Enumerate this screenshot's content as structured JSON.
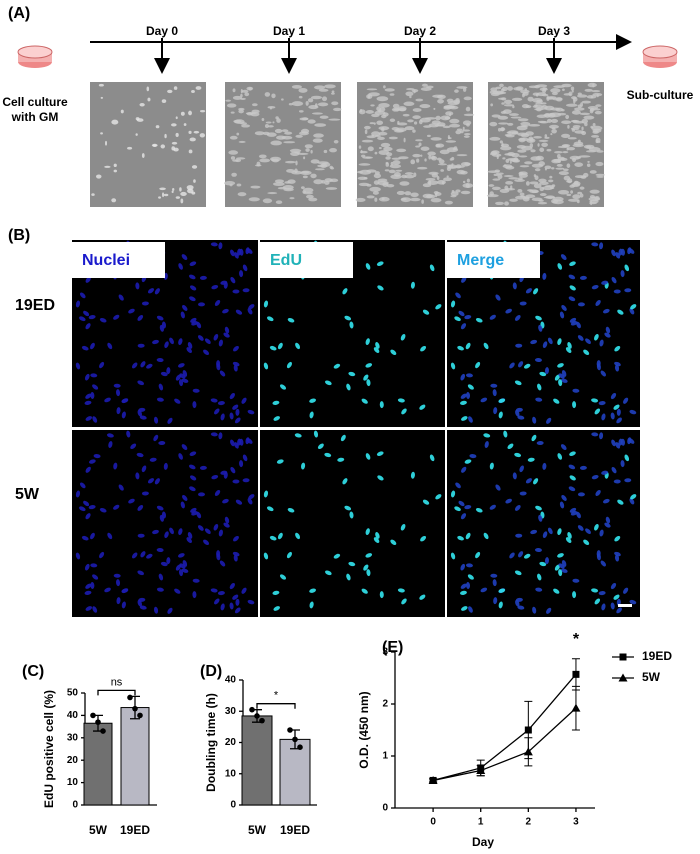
{
  "panel_a": {
    "label": "(A)",
    "days": [
      "Day 0",
      "Day 1",
      "Day 2",
      "Day 3"
    ],
    "start_lines": [
      "Cell culture",
      "with GM"
    ],
    "end_label": "Sub-culture"
  },
  "panel_b": {
    "label": "(B)",
    "channels": [
      "Nuclei",
      "EdU",
      "Merge"
    ],
    "rows": [
      "19ED",
      "5W"
    ]
  },
  "chart_data": [
    {
      "type": "bar",
      "label": "(C)",
      "ylabel": "EdU positive cell (%)",
      "categories": [
        "5W",
        "19ED"
      ],
      "values": [
        36.5,
        43.5
      ],
      "errors": [
        3.5,
        5
      ],
      "points": [
        [
          40,
          37,
          33
        ],
        [
          48,
          43,
          40
        ]
      ],
      "colors": [
        "#707070",
        "#b8b8c4"
      ],
      "ylim": [
        0,
        50
      ],
      "yticks": [
        0,
        10,
        20,
        30,
        40,
        50
      ],
      "significance": "ns"
    },
    {
      "type": "bar",
      "label": "(D)",
      "ylabel": "Doubling time (h)",
      "categories": [
        "5W",
        "19ED"
      ],
      "values": [
        28.5,
        21
      ],
      "errors": [
        2,
        3
      ],
      "points": [
        [
          30.5,
          28.5,
          27
        ],
        [
          24,
          21,
          18.5
        ]
      ],
      "colors": [
        "#707070",
        "#b8b8c4"
      ],
      "ylim": [
        0,
        40
      ],
      "yticks": [
        0,
        10,
        20,
        30,
        40
      ],
      "significance": "*"
    },
    {
      "type": "line",
      "label": "(E)",
      "xlabel": "Day",
      "ylabel": "O.D. (450 nm)",
      "x": [
        0,
        1,
        2,
        3
      ],
      "xlim": [
        -0.8,
        3.4
      ],
      "xticks": [
        0,
        1,
        2,
        3
      ],
      "ylim": [
        0,
        3
      ],
      "yticks": [
        0,
        1,
        2,
        3
      ],
      "annotation": "*",
      "series": [
        {
          "name": "19ED",
          "marker": "square",
          "color": "#000000",
          "values": [
            0.53,
            0.77,
            1.5,
            2.57
          ],
          "errors": [
            0.03,
            0.15,
            0.55,
            0.3
          ]
        },
        {
          "name": "5W",
          "marker": "triangle",
          "color": "#000000",
          "values": [
            0.53,
            0.72,
            1.08,
            1.92
          ],
          "errors": [
            0.03,
            0.1,
            0.27,
            0.42
          ]
        }
      ]
    }
  ]
}
